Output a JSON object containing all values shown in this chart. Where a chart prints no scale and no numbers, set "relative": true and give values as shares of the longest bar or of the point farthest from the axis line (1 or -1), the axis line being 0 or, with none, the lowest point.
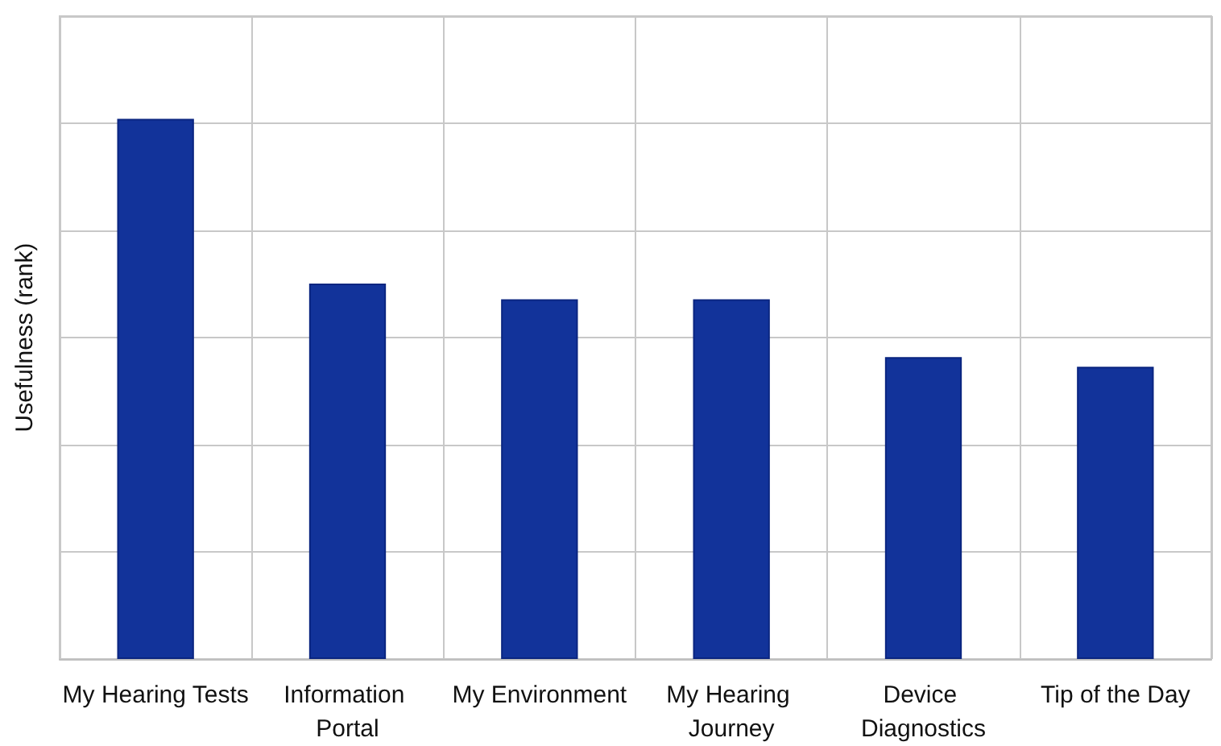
{
  "chart_data": {
    "type": "bar",
    "ylabel": "Usefulness (rank)",
    "relative": true,
    "grid": true,
    "categories": [
      "My Hearing Tests",
      "Information Portal",
      "My Environment",
      "My Hearing Journey",
      "Device Diagnostics",
      "Tip of the Day"
    ],
    "series": [
      {
        "color": "#12339a",
        "values": [
          1,
          0.695,
          0.666,
          0.666,
          0.559,
          0.541
        ]
      }
    ]
  }
}
